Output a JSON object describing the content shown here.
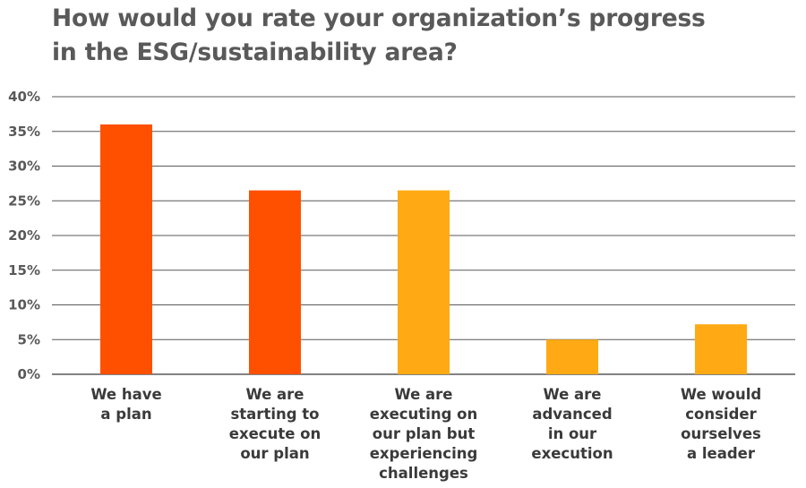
{
  "chart_data": {
    "type": "bar",
    "title": [
      "How would you rate your organization’s progress",
      "in the ESG/sustainability area?"
    ],
    "categories": [
      [
        "We have",
        "a plan"
      ],
      [
        "We are",
        "starting to",
        "execute on",
        "our plan"
      ],
      [
        "We are",
        "executing on",
        "our plan but",
        "experiencing",
        "challenges"
      ],
      [
        "We are",
        "advanced",
        "in our",
        "execution"
      ],
      [
        "We would",
        "consider",
        "ourselves",
        "a leader"
      ]
    ],
    "values": [
      36,
      26.5,
      26.5,
      5,
      7.2
    ],
    "colors": [
      "#FF5000",
      "#FF5000",
      "#FFAA14",
      "#FFAA14",
      "#FFAA14"
    ],
    "ylim": [
      0,
      40
    ],
    "yticks": [
      0,
      5,
      10,
      15,
      20,
      25,
      30,
      35,
      40
    ],
    "ytick_labels": [
      "0%",
      "5%",
      "10%",
      "15%",
      "20%",
      "25%",
      "30%",
      "35%",
      "40%"
    ],
    "grid": true,
    "gridline_color": "#595959",
    "legend": "none"
  }
}
